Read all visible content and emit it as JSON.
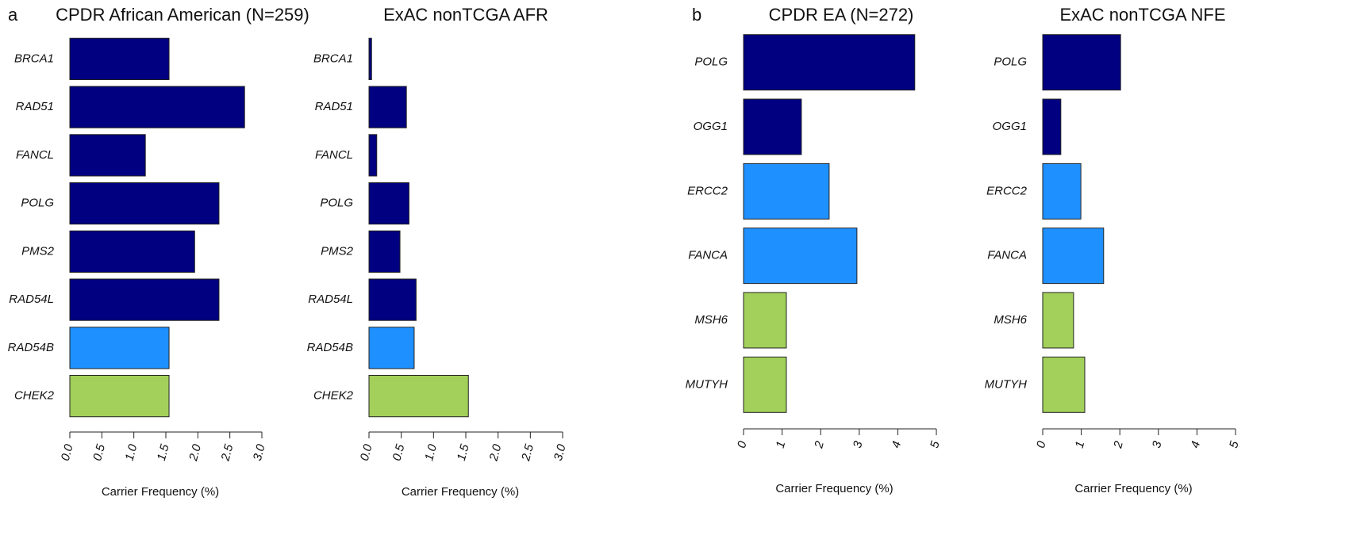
{
  "chart_data": [
    {
      "type": "barh",
      "panel_label": "a",
      "title": "CPDR African American (N=259)",
      "x_label": "Carrier Frequency (%)",
      "categories": [
        "BRCA1",
        "RAD51",
        "FANCL",
        "POLG",
        "PMS2",
        "RAD54L",
        "RAD54B",
        "CHEK2"
      ],
      "values": [
        1.55,
        2.73,
        1.18,
        2.33,
        1.95,
        2.33,
        1.55,
        1.55
      ],
      "colors": [
        "#000080",
        "#000080",
        "#000080",
        "#000080",
        "#000080",
        "#000080",
        "#1e90ff",
        "#a2d05a"
      ],
      "xlim": [
        0,
        3
      ],
      "xticks": [
        {
          "value": 0,
          "label": "0.0"
        },
        0.5,
        {
          "value": 1,
          "label": "1.0"
        },
        1.5,
        {
          "value": 2,
          "label": "2.0"
        },
        2.5,
        {
          "value": 3,
          "label": "3.0"
        }
      ]
    },
    {
      "type": "barh",
      "title": "ExAC nonTCGA AFR",
      "x_label": "Carrier Frequency (%)",
      "categories": [
        "BRCA1",
        "RAD51",
        "FANCL",
        "POLG",
        "PMS2",
        "RAD54L",
        "RAD54B",
        "CHEK2"
      ],
      "values": [
        0.04,
        0.58,
        0.12,
        0.62,
        0.48,
        0.73,
        0.7,
        1.54
      ],
      "colors": [
        "#000080",
        "#000080",
        "#000080",
        "#000080",
        "#000080",
        "#000080",
        "#1e90ff",
        "#a2d05a"
      ],
      "xlim": [
        0,
        3
      ],
      "xticks": [
        {
          "value": 0,
          "label": "0.0"
        },
        0.5,
        {
          "value": 1,
          "label": "1.0"
        },
        1.5,
        {
          "value": 2,
          "label": "2.0"
        },
        2.5,
        {
          "value": 3,
          "label": "3.0"
        }
      ]
    },
    {
      "type": "barh",
      "panel_label": "b",
      "title": "CPDR EA (N=272)",
      "x_label": "Carrier Frequency (%)",
      "categories": [
        "POLG",
        "OGG1",
        "ERCC2",
        "FANCA",
        "MSH6",
        "MUTYH"
      ],
      "values": [
        4.44,
        1.5,
        2.22,
        2.94,
        1.11,
        1.11
      ],
      "colors": [
        "#000080",
        "#000080",
        "#1e90ff",
        "#1e90ff",
        "#a2d05a",
        "#a2d05a"
      ],
      "xlim": [
        0,
        5
      ],
      "xticks": [
        0,
        1,
        2,
        3,
        4,
        5
      ]
    },
    {
      "type": "barh",
      "title": "ExAC nonTCGA NFE",
      "x_label": "Carrier Frequency (%)",
      "categories": [
        "POLG",
        "OGG1",
        "ERCC2",
        "FANCA",
        "MSH6",
        "MUTYH"
      ],
      "values": [
        2.02,
        0.47,
        0.99,
        1.58,
        0.8,
        1.09
      ],
      "colors": [
        "#000080",
        "#000080",
        "#1e90ff",
        "#1e90ff",
        "#a2d05a",
        "#a2d05a"
      ],
      "xlim": [
        0,
        5
      ],
      "xticks": [
        0,
        1,
        2,
        3,
        4,
        5
      ]
    }
  ]
}
